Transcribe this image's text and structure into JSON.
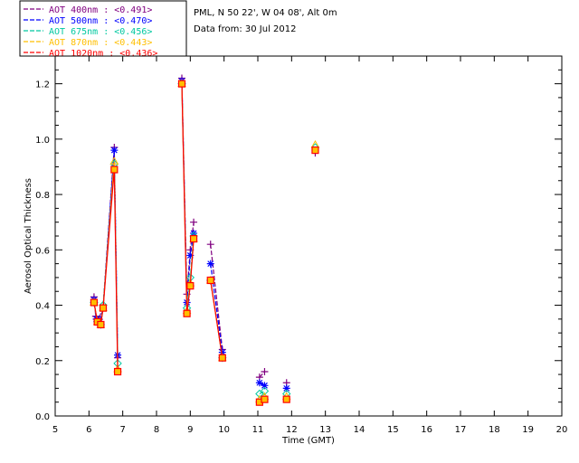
{
  "chart_data": {
    "type": "scatter",
    "title": "",
    "info_line1": "PML, N 50 22', W 04 08', Alt 0m",
    "info_line2": "Data from: 30 Jul 2012",
    "xlabel": "Time (GMT)",
    "ylabel": "Aerosol Optical Thickness",
    "xlim": [
      5,
      20
    ],
    "ylim": [
      0.0,
      1.3
    ],
    "xticks": [
      "5",
      "6",
      "7",
      "8",
      "9",
      "10",
      "11",
      "12",
      "13",
      "14",
      "15",
      "16",
      "17",
      "18",
      "19",
      "20"
    ],
    "yticks": [
      "0.0",
      "0.2",
      "0.4",
      "0.6",
      "0.8",
      "1.0",
      "1.2"
    ],
    "legend_position": "top-left",
    "series": [
      {
        "name": "AOT 400nm : <0.491>",
        "color": "#800080",
        "marker": "plus",
        "x": [
          6.15,
          6.2,
          6.3,
          6.42,
          6.75,
          6.85,
          8.75,
          8.9,
          9.0,
          9.1,
          9.6,
          9.95,
          11.05,
          11.2,
          11.85,
          12.7
        ],
        "y": [
          0.43,
          0.36,
          0.35,
          0.4,
          0.97,
          0.21,
          1.22,
          0.44,
          0.6,
          0.7,
          0.62,
          0.24,
          0.14,
          0.16,
          0.12,
          0.95
        ]
      },
      {
        "name": "AOT 500nm : <0.470>",
        "color": "#0000ff",
        "marker": "asterisk",
        "x": [
          6.15,
          6.22,
          6.32,
          6.42,
          6.75,
          6.85,
          8.75,
          8.9,
          9.0,
          9.1,
          9.6,
          9.95,
          11.05,
          11.2,
          11.85,
          12.7
        ],
        "y": [
          0.42,
          0.35,
          0.34,
          0.39,
          0.96,
          0.22,
          1.21,
          0.41,
          0.58,
          0.66,
          0.55,
          0.23,
          0.12,
          0.11,
          0.1,
          0.96
        ]
      },
      {
        "name": "AOT 675nm : <0.456>",
        "color": "#00c8a0",
        "marker": "diamond",
        "x": [
          6.15,
          6.25,
          6.35,
          6.42,
          6.75,
          6.85,
          8.75,
          8.9,
          9.0,
          9.1,
          9.6,
          9.95,
          11.05,
          11.2,
          11.85,
          12.7
        ],
        "y": [
          0.41,
          0.34,
          0.33,
          0.4,
          0.91,
          0.19,
          1.2,
          0.39,
          0.5,
          0.65,
          0.49,
          0.21,
          0.08,
          0.09,
          0.08,
          0.97
        ]
      },
      {
        "name": "AOT 870nm : <0.443>",
        "color": "#ffbf00",
        "marker": "triangle",
        "x": [
          6.15,
          6.25,
          6.35,
          6.42,
          6.75,
          6.85,
          8.75,
          8.9,
          9.0,
          9.1,
          9.6,
          9.95,
          11.05,
          11.2,
          11.85,
          12.7
        ],
        "y": [
          0.41,
          0.34,
          0.33,
          0.39,
          0.92,
          0.17,
          1.2,
          0.38,
          0.48,
          0.64,
          0.49,
          0.21,
          0.06,
          0.07,
          0.07,
          0.98
        ]
      },
      {
        "name": "AOT 1020nm : <0.436>",
        "color": "#ff0000",
        "marker": "square",
        "x": [
          6.15,
          6.25,
          6.35,
          6.42,
          6.75,
          6.85,
          8.75,
          8.9,
          9.0,
          9.1,
          9.6,
          9.95,
          11.05,
          11.2,
          11.85,
          12.7
        ],
        "y": [
          0.41,
          0.34,
          0.33,
          0.39,
          0.89,
          0.16,
          1.2,
          0.37,
          0.47,
          0.64,
          0.49,
          0.21,
          0.05,
          0.06,
          0.06,
          0.96
        ]
      }
    ]
  },
  "marker_fill_color": "#ffbf00"
}
